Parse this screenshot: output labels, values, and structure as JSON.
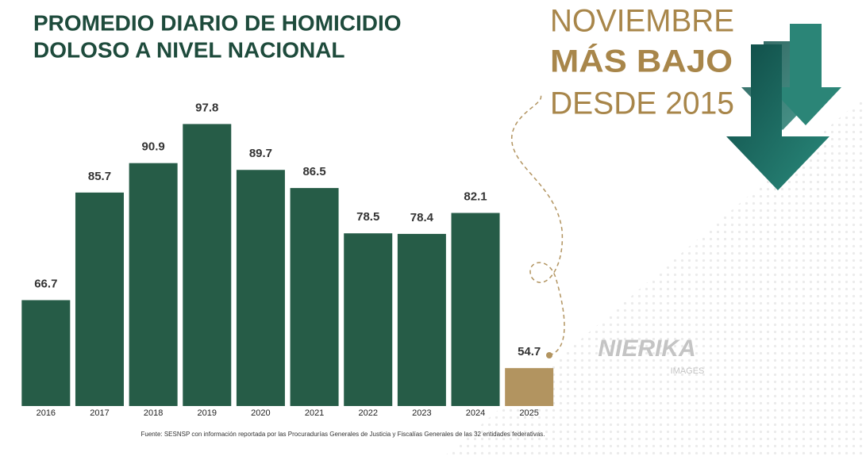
{
  "chart_data": {
    "type": "bar",
    "title": [
      "PROMEDIO DIARIO DE HOMICIDIO",
      "DOLOSO A NIVEL NACIONAL"
    ],
    "annotation": [
      "NOVIEMBRE",
      "MÁS BAJO",
      "DESDE 2015"
    ],
    "categories": [
      "2016",
      "2017",
      "2018",
      "2019",
      "2020",
      "2021",
      "2022",
      "2023",
      "2024",
      "2025"
    ],
    "values": [
      66.7,
      85.7,
      90.9,
      97.8,
      89.7,
      86.5,
      78.5,
      78.4,
      82.1,
      54.7
    ],
    "colors": [
      "#265c47",
      "#265c47",
      "#265c47",
      "#265c47",
      "#265c47",
      "#265c47",
      "#265c47",
      "#265c47",
      "#265c47",
      "#b29460"
    ],
    "ylim": [
      48,
      100
    ],
    "source": "Fuente: SESNSP con información reportada por las Procuradurías Generales de Justicia y Fiscalías Generales de las 32 entidades federativas.",
    "watermark": [
      "NIERIKA",
      "IMAGES"
    ]
  }
}
